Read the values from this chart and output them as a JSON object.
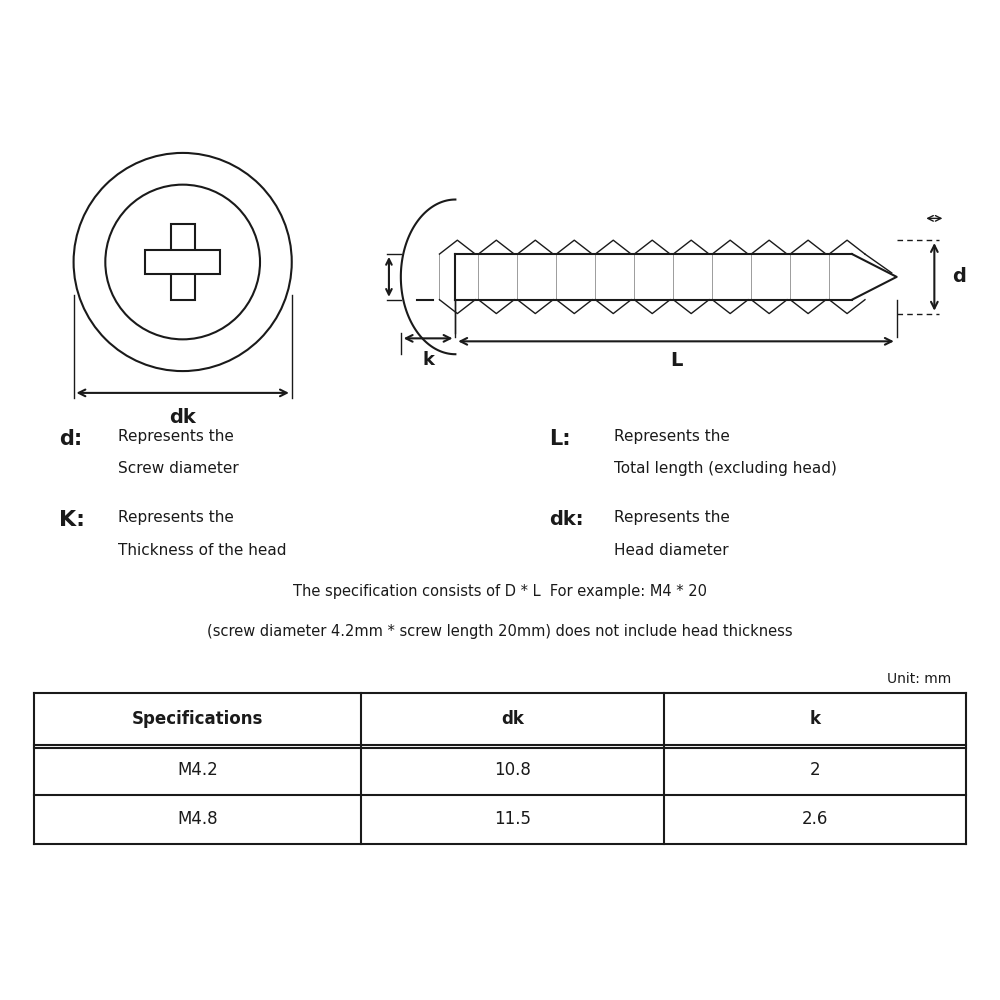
{
  "bg_color": "#ffffff",
  "line_color": "#1a1a1a",
  "legend_d_sym": "d",
  "legend_d_desc1": "Represents the",
  "legend_d_desc2": "Screw diameter",
  "legend_L_sym": "L",
  "legend_L_desc1": "Represents the",
  "legend_L_desc2": "Total length (excluding head)",
  "legend_K_sym": "K",
  "legend_K_desc1": "Represents the",
  "legend_K_desc2": "Thickness of the head",
  "legend_dk_sym": "dk",
  "legend_dk_desc1": "Represents the",
  "legend_dk_desc2": "Head diameter",
  "spec_text1": "The specification consists of D * L  For example: M4 * 20",
  "spec_text2": "(screw diameter 4.2mm * screw length 20mm) does not include head thickness",
  "unit_text": "Unit: mm",
  "table_headers": [
    "Specifications",
    "dk",
    "k"
  ],
  "table_rows": [
    [
      "M4.2",
      "10.8",
      "2"
    ],
    [
      "M4.8",
      "11.5",
      "2.6"
    ]
  ],
  "figsize": [
    10,
    10
  ],
  "dpi": 100
}
